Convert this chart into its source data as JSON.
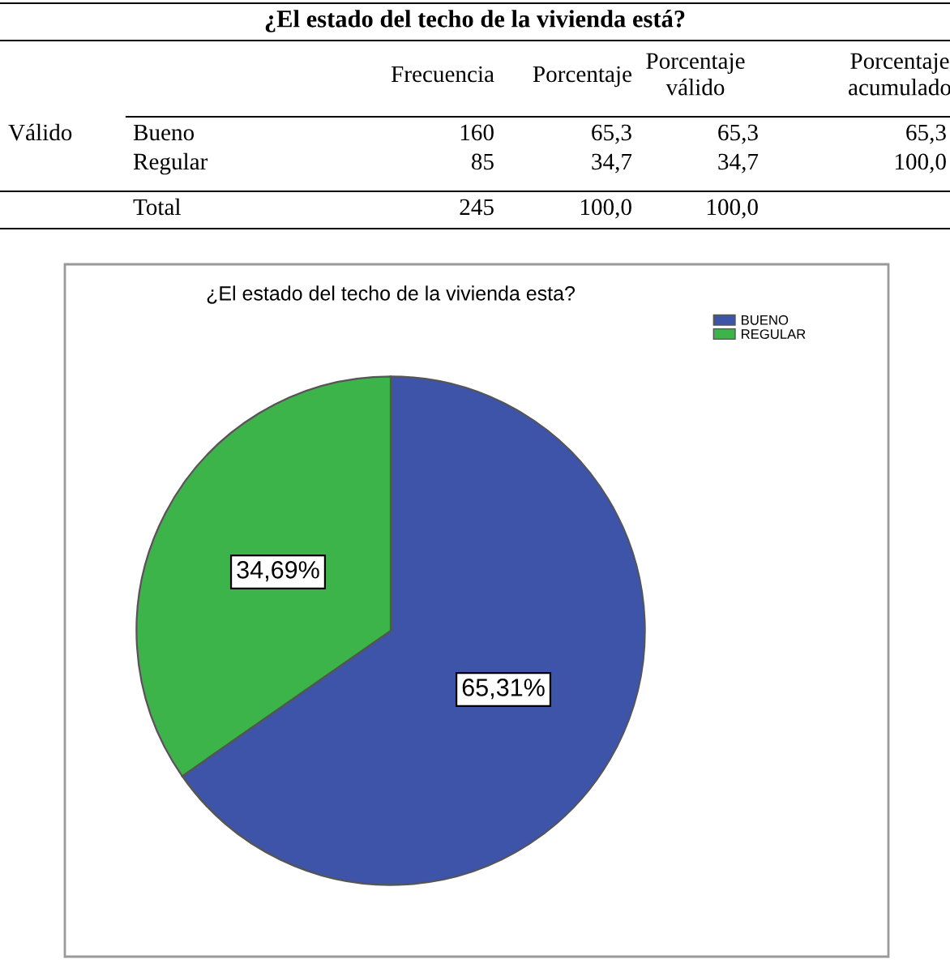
{
  "chart_data": [
    {
      "type": "other",
      "title": "¿El estado del techo de la vivienda está?",
      "annotations": [
        "Frecuencia",
        "Porcentaje",
        "Porcentaje\nválido",
        "Porcentaje\nacumulado",
        "Válido",
        "Bueno",
        "160",
        "65,3",
        "65,3",
        "65,3",
        "Regular",
        "85",
        "34,7",
        "34,7",
        "100,0",
        "Total",
        "245",
        "100,0",
        "100,0"
      ]
    },
    {
      "type": "pie",
      "title": "¿El estado del techo de la vivienda esta?",
      "categories": [
        "BUENO",
        "REGULAR"
      ],
      "values": [
        65.31,
        34.69
      ],
      "colors": [
        "#3e54a8",
        "#3cb44a"
      ],
      "value_labels": [
        "65,31%",
        "34,69%"
      ],
      "legend": "top right"
    }
  ]
}
